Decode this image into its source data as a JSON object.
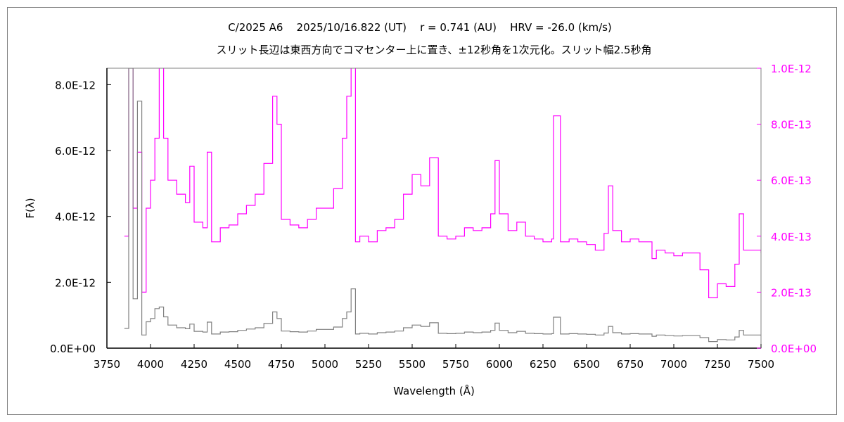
{
  "chart_data": {
    "type": "line",
    "title": "C/2025 A6    2025/10/16.822 (UT)    r = 0.741 (AU)    HRV = -26.0 (km/s)",
    "subtitle": "スリット長辺は東西方向でコマセンター上に置き、±12秒角を1次元化。スリット幅2.5秒角",
    "xlabel": "Wavelength (Å)",
    "ylabel": "F(λ)",
    "xlim": [
      3750,
      7500
    ],
    "ylim_left": [
      0,
      8.5e-12
    ],
    "ylim_right": [
      0,
      1e-12
    ],
    "x_ticks": [
      "3750",
      "4000",
      "4250",
      "4500",
      "4750",
      "5000",
      "5250",
      "5500",
      "5750",
      "6000",
      "6250",
      "6500",
      "6750",
      "7000",
      "7250",
      "7500"
    ],
    "y_left_ticks": [
      "0.0E+00",
      "2.0E-12",
      "4.0E-12",
      "6.0E-12",
      "8.0E-12"
    ],
    "y_right_ticks": [
      "0.0E+00",
      "2.0E-13",
      "4.0E-13",
      "6.0E-13",
      "8.0E-13",
      "1.0E-12"
    ],
    "grid": false,
    "x": [
      3850,
      3875,
      3900,
      3925,
      3950,
      3975,
      4000,
      4025,
      4050,
      4075,
      4100,
      4150,
      4200,
      4225,
      4250,
      4300,
      4325,
      4350,
      4400,
      4450,
      4500,
      4550,
      4600,
      4650,
      4700,
      4725,
      4750,
      4800,
      4850,
      4900,
      4950,
      5000,
      5050,
      5100,
      5125,
      5150,
      5175,
      5200,
      5250,
      5300,
      5350,
      5400,
      5450,
      5500,
      5550,
      5600,
      5650,
      5700,
      5750,
      5800,
      5850,
      5900,
      5950,
      5975,
      6000,
      6050,
      6100,
      6150,
      6200,
      6250,
      6300,
      6310,
      6350,
      6400,
      6450,
      6500,
      6550,
      6600,
      6625,
      6650,
      6700,
      6750,
      6800,
      6850,
      6875,
      6900,
      6950,
      7000,
      7050,
      7100,
      7150,
      7200,
      7250,
      7300,
      7350,
      7375,
      7400,
      7450,
      7500
    ],
    "series": [
      {
        "name": "F(λ) left axis (E-12)",
        "axis": "left",
        "color": "#808080",
        "unit_scale": 1e-12,
        "values": [
          0.6,
          8.5,
          1.5,
          7.5,
          0.4,
          0.8,
          0.9,
          1.2,
          1.25,
          0.95,
          0.7,
          0.62,
          0.59,
          0.73,
          0.51,
          0.49,
          0.79,
          0.43,
          0.49,
          0.5,
          0.54,
          0.58,
          0.62,
          0.75,
          1.1,
          0.9,
          0.52,
          0.5,
          0.49,
          0.52,
          0.57,
          0.57,
          0.64,
          0.9,
          1.1,
          1.8,
          0.43,
          0.45,
          0.43,
          0.47,
          0.49,
          0.52,
          0.62,
          0.7,
          0.66,
          0.77,
          0.45,
          0.44,
          0.45,
          0.49,
          0.47,
          0.49,
          0.54,
          0.76,
          0.54,
          0.47,
          0.51,
          0.45,
          0.44,
          0.43,
          0.44,
          0.94,
          0.43,
          0.44,
          0.43,
          0.42,
          0.4,
          0.46,
          0.66,
          0.47,
          0.43,
          0.44,
          0.43,
          0.43,
          0.36,
          0.4,
          0.38,
          0.37,
          0.38,
          0.38,
          0.32,
          0.2,
          0.26,
          0.25,
          0.34,
          0.54,
          0.4,
          0.4,
          0.38
        ]
      },
      {
        "name": "F(λ) right axis (E-13)",
        "axis": "right",
        "color": "#ff00ff",
        "unit_scale": 1e-13,
        "values": [
          4.0,
          10.5,
          5.0,
          7.0,
          2.0,
          5.0,
          6.0,
          7.5,
          10.5,
          7.5,
          6.0,
          5.5,
          5.2,
          6.5,
          4.5,
          4.3,
          7.0,
          3.8,
          4.3,
          4.4,
          4.8,
          5.1,
          5.5,
          6.6,
          9.0,
          8.0,
          4.6,
          4.4,
          4.3,
          4.6,
          5.0,
          5.0,
          5.7,
          7.5,
          9.0,
          10.5,
          3.8,
          4.0,
          3.8,
          4.2,
          4.3,
          4.6,
          5.5,
          6.2,
          5.8,
          6.8,
          4.0,
          3.9,
          4.0,
          4.3,
          4.2,
          4.3,
          4.8,
          6.7,
          4.8,
          4.2,
          4.5,
          4.0,
          3.9,
          3.8,
          3.9,
          8.3,
          3.8,
          3.9,
          3.8,
          3.7,
          3.5,
          4.1,
          5.8,
          4.2,
          3.8,
          3.9,
          3.8,
          3.8,
          3.2,
          3.5,
          3.4,
          3.3,
          3.4,
          3.4,
          2.8,
          1.8,
          2.3,
          2.2,
          3.0,
          4.8,
          3.5,
          3.5,
          3.4
        ]
      }
    ]
  }
}
